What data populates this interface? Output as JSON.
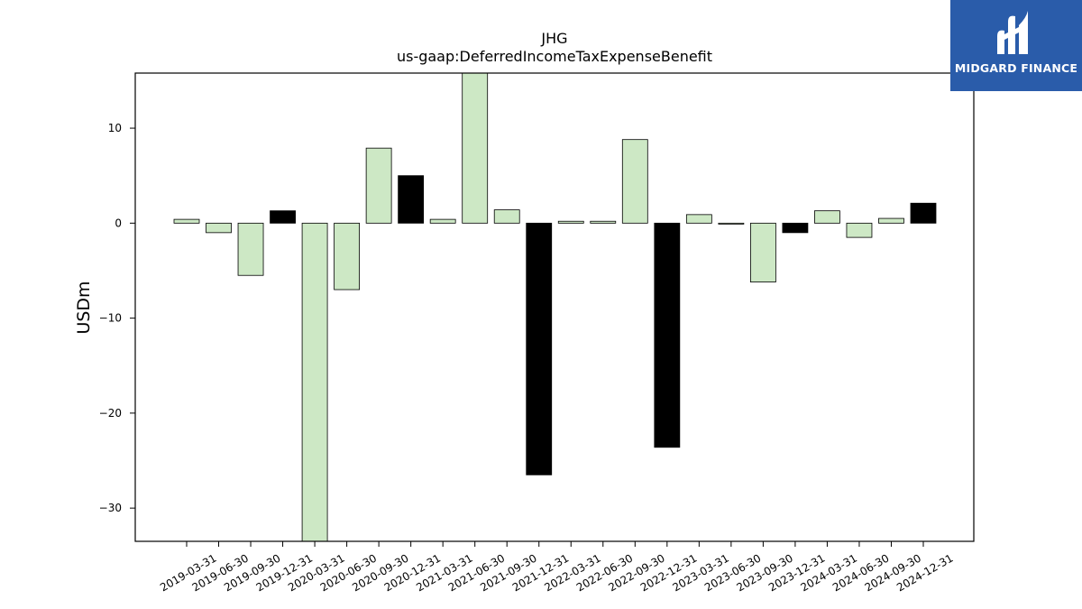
{
  "chart_data": {
    "type": "bar",
    "title": "JHG",
    "subtitle": "us-gaap:DeferredIncomeTaxExpenseBenefit",
    "ylabel": "USDm",
    "xlabel": "",
    "ylim": [
      -33.5,
      15.8
    ],
    "yticks": [
      10,
      0,
      -10,
      -20,
      -30
    ],
    "ytick_labels": [
      "10",
      "0",
      "−10",
      "−20",
      "−30"
    ],
    "grid": false,
    "categories": [
      "2019-03-31",
      "2019-06-30",
      "2019-09-30",
      "2019-12-31",
      "2020-03-31",
      "2020-06-30",
      "2020-09-30",
      "2020-12-31",
      "2021-03-31",
      "2021-06-30",
      "2021-09-30",
      "2021-12-31",
      "2022-03-31",
      "2022-06-30",
      "2022-09-30",
      "2022-12-31",
      "2023-03-31",
      "2023-06-30",
      "2023-09-30",
      "2023-12-31",
      "2024-03-31",
      "2024-06-30",
      "2024-09-30",
      "2024-12-31"
    ],
    "values": [
      0.4,
      -1.0,
      -5.5,
      1.3,
      -33.5,
      -7.0,
      7.9,
      5.0,
      0.4,
      15.8,
      1.4,
      -26.5,
      0.2,
      0.2,
      8.8,
      -23.6,
      0.9,
      -0.1,
      -6.2,
      -1.0,
      1.3,
      -1.5,
      0.5,
      2.1
    ],
    "colors": [
      "#cde8c5",
      "#cde8c5",
      "#cde8c5",
      "#000000",
      "#cde8c5",
      "#cde8c5",
      "#cde8c5",
      "#000000",
      "#cde8c5",
      "#cde8c5",
      "#cde8c5",
      "#000000",
      "#cde8c5",
      "#cde8c5",
      "#cde8c5",
      "#000000",
      "#cde8c5",
      "#cde8c5",
      "#cde8c5",
      "#000000",
      "#cde8c5",
      "#cde8c5",
      "#cde8c5",
      "#000000"
    ]
  },
  "logo": {
    "text": "MIDGARD FINANCE",
    "background": "#2a5caa"
  }
}
